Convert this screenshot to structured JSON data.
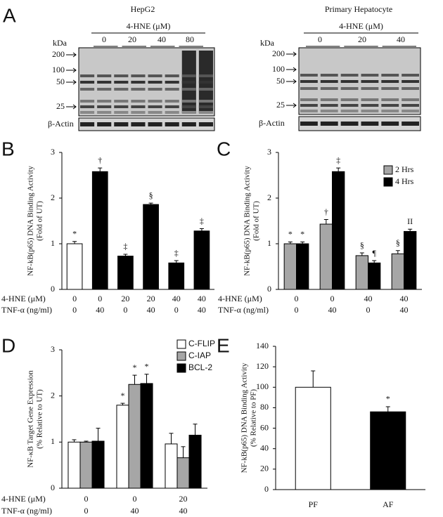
{
  "blots": [
    {
      "panel": "A",
      "title": "HepG2",
      "treatment": "4-HNE (μM)",
      "doses": [
        0,
        20,
        40,
        80
      ],
      "kda_title": "kDa",
      "kda": [
        200,
        100,
        50,
        25
      ],
      "loading": "β-Actin"
    },
    {
      "title": "Primary Hepatocyte",
      "treatment": "4-HNE (μM)",
      "doses": [
        0,
        20,
        40
      ],
      "kda_title": "kDa",
      "kda": [
        200,
        100,
        50,
        25
      ],
      "loading": "β-Actin"
    }
  ],
  "chart_data": [
    {
      "type": "bar",
      "panel": "B",
      "ylabel": [
        "NF-kB(p65) DNA Binding Activity",
        "(Fold of UT)"
      ],
      "ylim": [
        0,
        3
      ],
      "yticks": [
        0,
        1,
        2,
        3
      ],
      "series": [
        {
          "colors": [
            "#ffffff",
            "#000000",
            "#000000",
            "#000000",
            "#000000",
            "#000000"
          ],
          "values": [
            1.0,
            2.58,
            0.73,
            1.86,
            0.58,
            1.28
          ],
          "errors": [
            0.05,
            0.08,
            0.04,
            0.03,
            0.05,
            0.05
          ],
          "annotations": [
            "*",
            "†",
            "‡",
            "§",
            "‡",
            "‡"
          ]
        }
      ],
      "conditions": [
        {
          "label": "4-HNE (μM)",
          "values": [
            0,
            0,
            20,
            20,
            40,
            40
          ]
        },
        {
          "label": "TNF-α (ng/ml)",
          "values": [
            0,
            40,
            0,
            40,
            0,
            40
          ]
        }
      ]
    },
    {
      "type": "bar",
      "panel": "C",
      "ylabel": [
        "NF-kB(p65) DNA Binding Activity",
        "(Fold of UT)"
      ],
      "ylim": [
        0,
        3
      ],
      "yticks": [
        0,
        1,
        2,
        3
      ],
      "series": [
        {
          "name": "2 Hrs",
          "color": "#a6a6a6",
          "values": [
            1.0,
            1.43,
            0.74,
            0.78
          ],
          "errors": [
            0.04,
            0.1,
            0.06,
            0.07
          ],
          "annotations": [
            "*",
            "†",
            "§",
            "§"
          ]
        },
        {
          "name": "4 Hrs",
          "color": "#000000",
          "values": [
            1.0,
            2.58,
            0.58,
            1.27
          ],
          "errors": [
            0.04,
            0.08,
            0.05,
            0.05
          ],
          "annotations": [
            "*",
            "‡",
            "¶",
            "II"
          ]
        }
      ],
      "conditions": [
        {
          "label": "4-HNE (μM)",
          "values": [
            0,
            0,
            40,
            40
          ]
        },
        {
          "label": "TNF-α (ng/ml)",
          "values": [
            0,
            40,
            0,
            40
          ]
        }
      ]
    },
    {
      "type": "bar",
      "panel": "D",
      "ylabel": [
        "NF-κB Target Gene Expression",
        "(% Relative to UT)"
      ],
      "ylim": [
        0,
        3
      ],
      "yticks": [
        0,
        1,
        2,
        3
      ],
      "series": [
        {
          "name": "C-FLIP",
          "color": "#ffffff",
          "values": [
            1.0,
            1.8,
            0.96
          ],
          "errors": [
            0.05,
            0.04,
            0.23
          ],
          "annotations": [
            null,
            "*",
            null
          ]
        },
        {
          "name": "C-IAP",
          "color": "#a6a6a6",
          "values": [
            1.0,
            2.25,
            0.66
          ],
          "errors": [
            0.02,
            0.2,
            0.24
          ],
          "annotations": [
            null,
            "*",
            null
          ]
        },
        {
          "name": "BCL-2",
          "color": "#000000",
          "values": [
            1.02,
            2.27,
            1.15
          ],
          "errors": [
            0.28,
            0.2,
            0.24
          ],
          "annotations": [
            null,
            "*",
            null
          ]
        }
      ],
      "conditions": [
        {
          "label": "4-HNE (μM)",
          "values": [
            0,
            0,
            20
          ]
        },
        {
          "label": "TNF-α (ng/ml)",
          "values": [
            0,
            40,
            40
          ]
        }
      ]
    },
    {
      "type": "bar",
      "panel": "E",
      "ylabel": [
        "NF-kB(p65) DNA Binding Activity",
        "(% Relative to PF)"
      ],
      "ylim": [
        0,
        140
      ],
      "yticks": [
        0,
        20,
        40,
        60,
        80,
        100,
        120,
        140
      ],
      "categories": [
        "PF",
        "AF"
      ],
      "series": [
        {
          "colors": [
            "#ffffff",
            "#000000"
          ],
          "values": [
            100,
            76
          ],
          "errors": [
            16,
            5
          ],
          "annotations": [
            null,
            "*"
          ]
        }
      ]
    }
  ]
}
